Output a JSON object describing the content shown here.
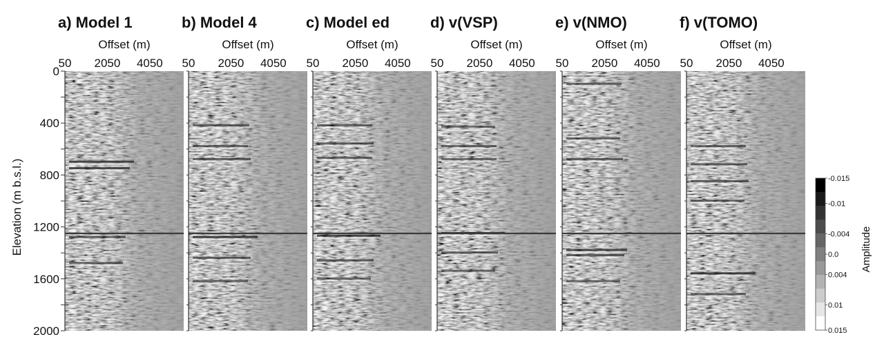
{
  "chart_data": {
    "type": "heatmap",
    "description_of_type": "seismic image panels",
    "ylabel": "Elevation (m b.s.l.)",
    "ylim": [
      0,
      2000
    ],
    "y_ticks": [
      "0",
      "400",
      "800",
      "1200",
      "1600",
      "2000"
    ],
    "y_tick_values": [
      0,
      400,
      800,
      1200,
      1600,
      2000
    ],
    "horizon_elevation": 1250,
    "panels": [
      {
        "title": "a) Model 1",
        "xlabel": "Offset (m)",
        "x_ticks": [
          "50",
          "2050",
          "4050"
        ],
        "x_tick_values": [
          50,
          2050,
          4050
        ],
        "reflections": [
          [
            700,
            0.85
          ],
          [
            750,
            0.7
          ],
          [
            1280,
            0.55
          ],
          [
            1480,
            0.45
          ]
        ]
      },
      {
        "title": "b) Model 4",
        "xlabel": "Offset (m)",
        "x_ticks": [
          "50",
          "2050",
          "4050"
        ],
        "x_tick_values": [
          50,
          2050,
          4050
        ],
        "reflections": [
          [
            420,
            0.55
          ],
          [
            580,
            0.5
          ],
          [
            680,
            0.6
          ],
          [
            1280,
            0.85
          ],
          [
            1440,
            0.6
          ],
          [
            1620,
            0.5
          ]
        ]
      },
      {
        "title": "c) Model ed",
        "xlabel": "Offset (m)",
        "x_ticks": [
          "50",
          "2050",
          "4050"
        ],
        "x_tick_values": [
          50,
          2050,
          4050
        ],
        "reflections": [
          [
            420,
            0.5
          ],
          [
            560,
            0.55
          ],
          [
            670,
            0.5
          ],
          [
            1270,
            0.8
          ],
          [
            1460,
            0.55
          ],
          [
            1600,
            0.45
          ]
        ]
      },
      {
        "title": "d) v(VSP)",
        "xlabel": "Offset (m)",
        "x_ticks": [
          "50",
          "2050",
          "4050"
        ],
        "x_tick_values": [
          50,
          2050,
          4050
        ],
        "reflections": [
          [
            430,
            0.45
          ],
          [
            580,
            0.5
          ],
          [
            680,
            0.5
          ],
          [
            1250,
            0.8
          ],
          [
            1400,
            0.55
          ],
          [
            1540,
            0.45
          ]
        ]
      },
      {
        "title": "e) v(NMO)",
        "xlabel": "Offset (m)",
        "x_ticks": [
          "50",
          "2050",
          "4050"
        ],
        "x_tick_values": [
          50,
          2050,
          4050
        ],
        "reflections": [
          [
            100,
            0.5
          ],
          [
            520,
            0.45
          ],
          [
            680,
            0.55
          ],
          [
            1380,
            0.7
          ],
          [
            1420,
            0.6
          ],
          [
            1620,
            0.45
          ]
        ]
      },
      {
        "title": "f) v(TOMO)",
        "xlabel": "Offset (m)",
        "x_ticks": [
          "50",
          "2050",
          "4050"
        ],
        "x_tick_values": [
          50,
          2050,
          4050
        ],
        "reflections": [
          [
            580,
            0.5
          ],
          [
            720,
            0.55
          ],
          [
            850,
            0.6
          ],
          [
            1000,
            0.45
          ],
          [
            1560,
            0.85
          ],
          [
            1720,
            0.5
          ]
        ]
      }
    ],
    "colorbar": {
      "title": "Amplitude",
      "labels": [
        "-0.015",
        "-0.01",
        "-0.004",
        "0.0",
        "0.004",
        "0.01",
        "0.015"
      ],
      "values": [
        -0.015,
        -0.01,
        -0.004,
        0.0,
        0.004,
        0.01,
        0.015
      ],
      "colors": [
        "#000000",
        "#1a1a1a",
        "#333333",
        "#4d4d4d",
        "#666666",
        "#808080",
        "#999999",
        "#b3b3b3",
        "#cccccc",
        "#e6e6e6",
        "#ffffff"
      ]
    },
    "background_color": "#9a9a9a",
    "horizon_color": "#3a3a3a"
  }
}
